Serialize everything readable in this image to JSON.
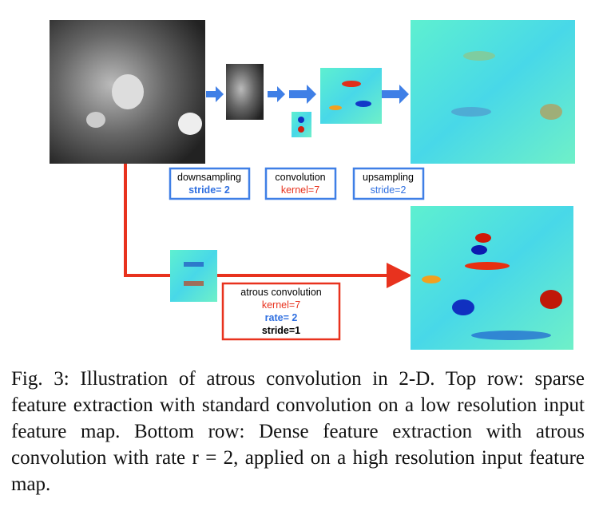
{
  "figure": {
    "top_boxes": [
      {
        "title": "downsampling",
        "param": "stride= 2"
      },
      {
        "title": "convolution",
        "param": "kernel=7"
      },
      {
        "title": "upsampling",
        "param": "stride=2"
      }
    ],
    "atrous_box": {
      "title": "atrous convolution",
      "kernel": "kernel=7",
      "rate": "rate= 2",
      "stride": "stride=1"
    },
    "caption": "Fig. 3: Illustration of atrous convolution in 2-D. Top row: sparse feature extraction with standard convolution on a low resolution input feature map. Bottom row: Dense feature extraction with atrous convolution with rate r = 2, applied on a high resolution input feature map."
  }
}
